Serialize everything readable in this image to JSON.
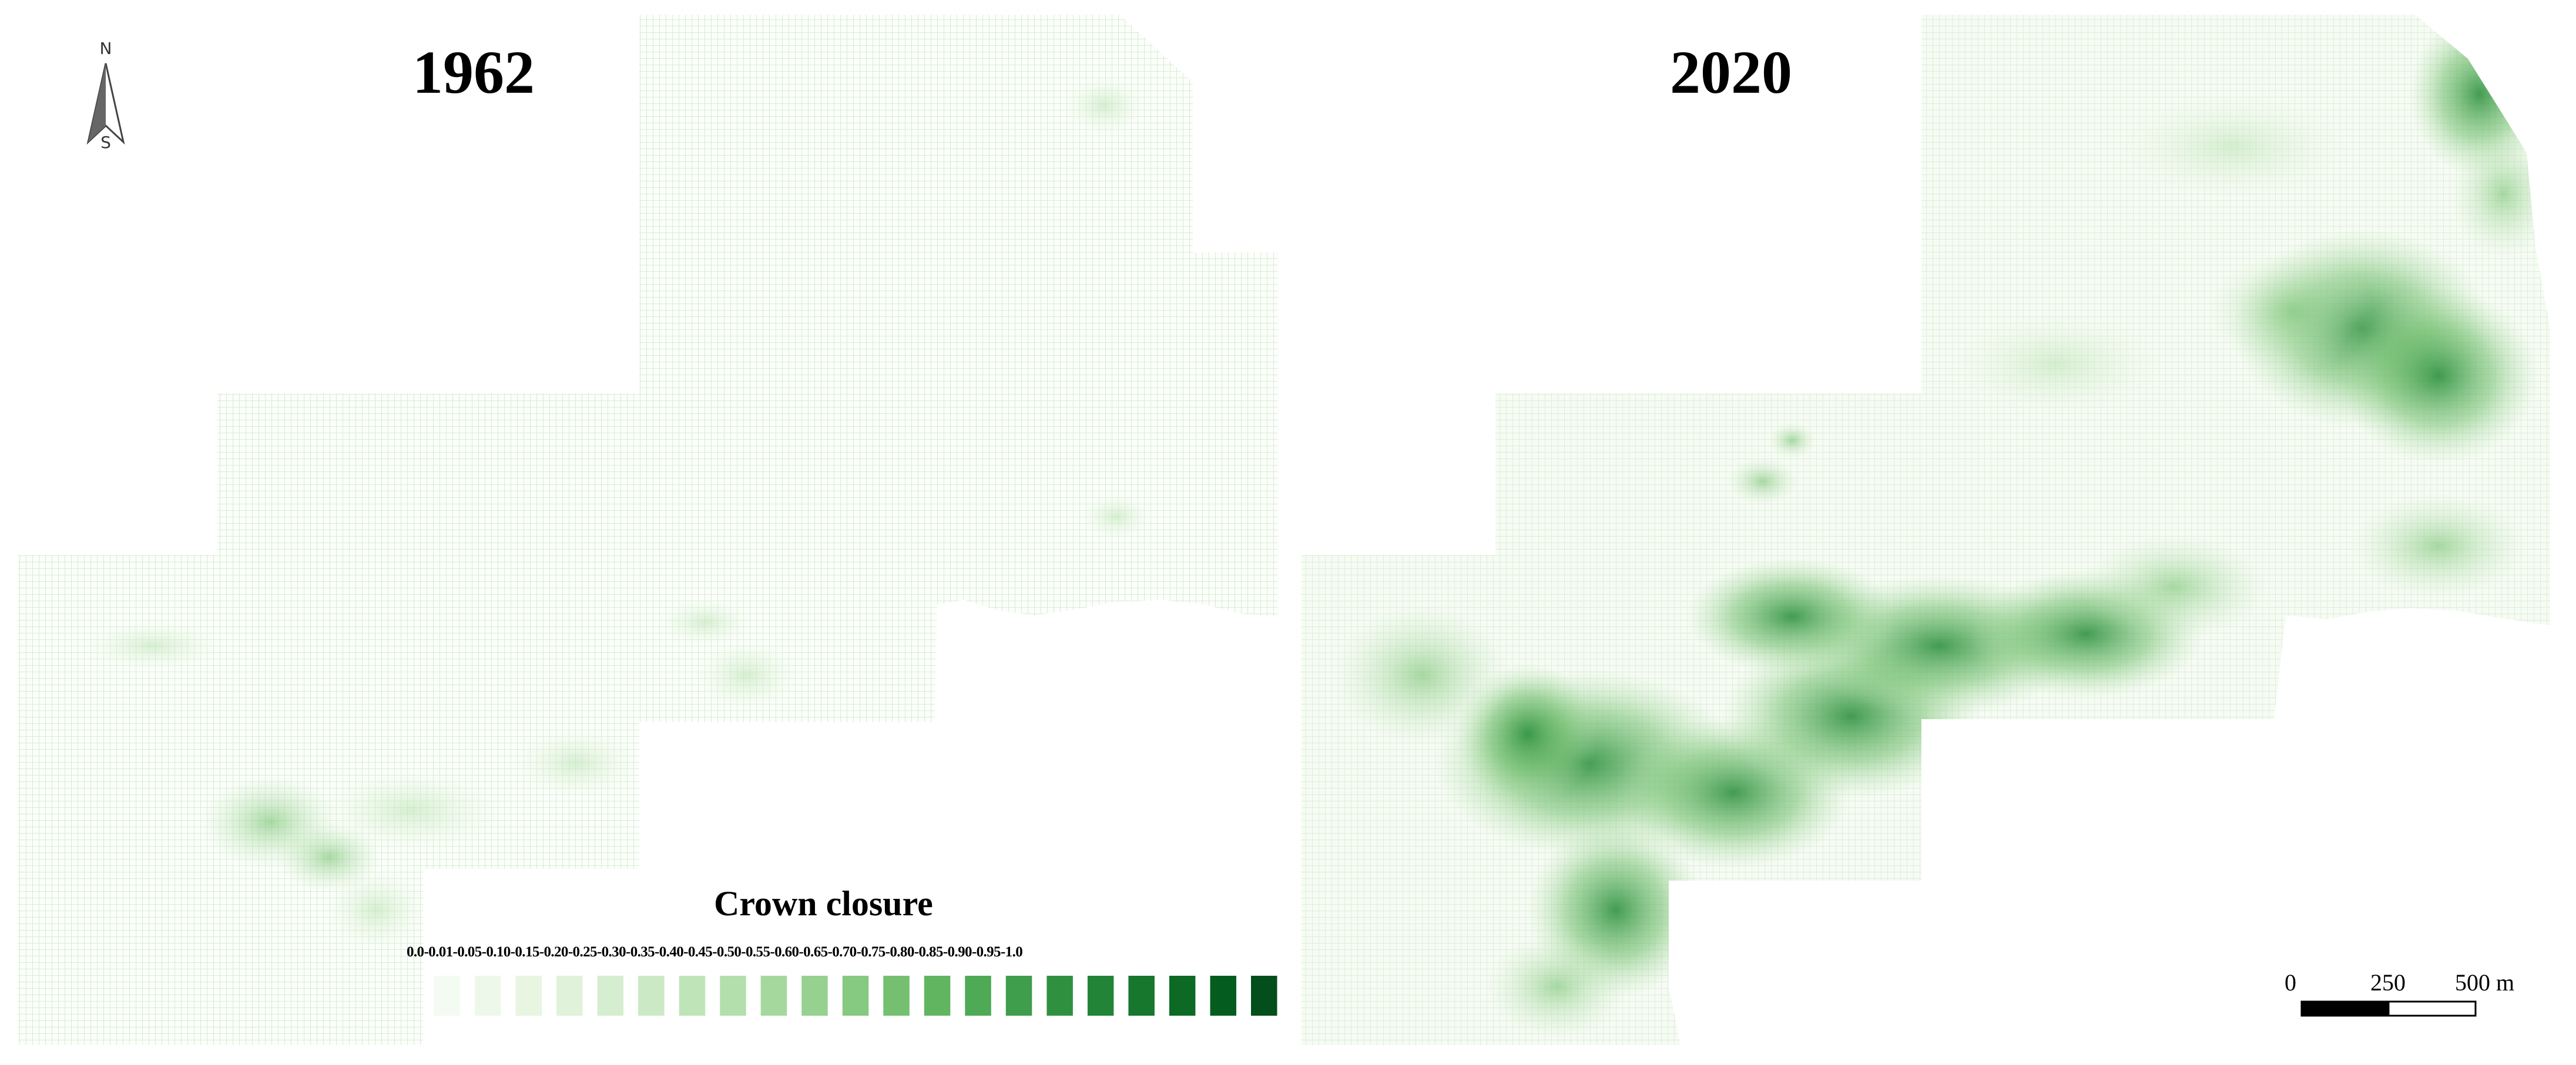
{
  "north_arrow": {
    "top_label": "N",
    "bottom_label": "S"
  },
  "maps": [
    {
      "year": "1962"
    },
    {
      "year": "2020"
    }
  ],
  "legend": {
    "title": "Crown closure",
    "labels_text": "0.0-0.01-0.05-0.10-0.15-0.20-0.25-0.30-0.35-0.40-0.45-0.50-0.55-0.60-0.65-0.70-0.75-0.80-0.85-0.90-0.95-1.0",
    "breaks": [
      "0.0",
      "0.01",
      "0.05",
      "0.10",
      "0.15",
      "0.20",
      "0.25",
      "0.30",
      "0.35",
      "0.40",
      "0.45",
      "0.50",
      "0.55",
      "0.60",
      "0.65",
      "0.70",
      "0.75",
      "0.80",
      "0.85",
      "0.90",
      "0.95",
      "1.0"
    ],
    "colors": [
      "#f4fbf2",
      "#eef8ea",
      "#e7f5e1",
      "#e0f2da",
      "#d6eed0",
      "#cbe9c5",
      "#bfe4b8",
      "#b2dfab",
      "#a4d89d",
      "#96d18f",
      "#86c980",
      "#74c070",
      "#61b561",
      "#4faa55",
      "#3f9e4b",
      "#2f9140",
      "#228436",
      "#16772d",
      "#0c6a25",
      "#055c1f",
      "#034e1a"
    ]
  },
  "scale_bar": {
    "labels": [
      "0",
      "250",
      "500 m"
    ]
  }
}
